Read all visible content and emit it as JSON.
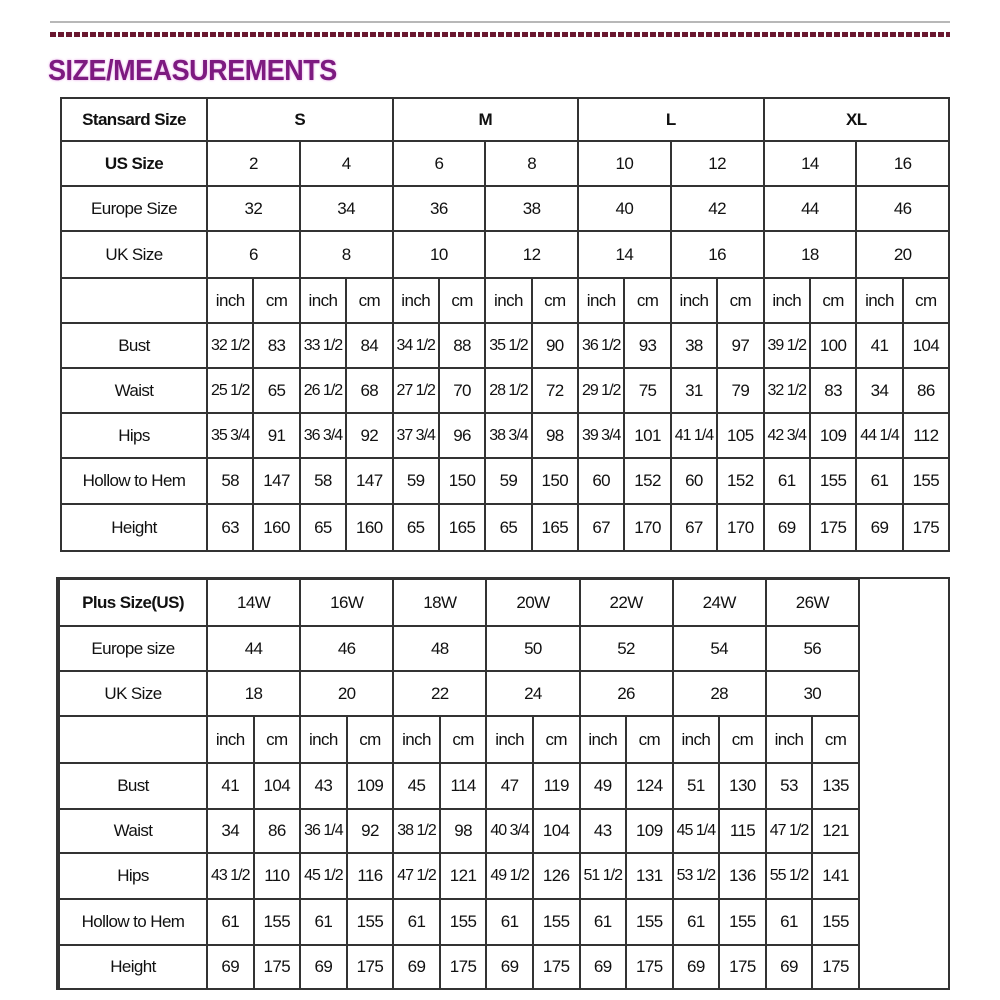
{
  "title": "SIZE/MEASUREMENTS",
  "colors": {
    "title": "#7d1a80",
    "dotted_rule": "#6a1830"
  },
  "standard": {
    "header": {
      "label": "Stansard Size",
      "groups": [
        "S",
        "M",
        "L",
        "XL"
      ]
    },
    "size_rows": [
      {
        "label": "US Size",
        "values": [
          "2",
          "4",
          "6",
          "8",
          "10",
          "12",
          "14",
          "16"
        ]
      },
      {
        "label": "Europe Size",
        "values": [
          "32",
          "34",
          "36",
          "38",
          "40",
          "42",
          "44",
          "46"
        ]
      },
      {
        "label": "UK Size",
        "values": [
          "6",
          "8",
          "10",
          "12",
          "14",
          "16",
          "18",
          "20"
        ]
      }
    ],
    "units": [
      "inch",
      "cm",
      "inch",
      "cm",
      "inch",
      "cm",
      "inch",
      "cm",
      "inch",
      "cm",
      "inch",
      "cm",
      "inch",
      "cm",
      "inch",
      "cm"
    ],
    "measure_rows": [
      {
        "label": "Bust",
        "values": [
          "32 1/2",
          "83",
          "33 1/2",
          "84",
          "34 1/2",
          "88",
          "35 1/2",
          "90",
          "36 1/2",
          "93",
          "38",
          "97",
          "39 1/2",
          "100",
          "41",
          "104"
        ]
      },
      {
        "label": "Waist",
        "values": [
          "25 1/2",
          "65",
          "26 1/2",
          "68",
          "27 1/2",
          "70",
          "28 1/2",
          "72",
          "29 1/2",
          "75",
          "31",
          "79",
          "32 1/2",
          "83",
          "34",
          "86"
        ]
      },
      {
        "label": "Hips",
        "values": [
          "35 3/4",
          "91",
          "36 3/4",
          "92",
          "37 3/4",
          "96",
          "38 3/4",
          "98",
          "39 3/4",
          "101",
          "41 1/4",
          "105",
          "42 3/4",
          "109",
          "44 1/4",
          "112"
        ]
      },
      {
        "label": "Hollow to Hem",
        "values": [
          "58",
          "147",
          "58",
          "147",
          "59",
          "150",
          "59",
          "150",
          "60",
          "152",
          "60",
          "152",
          "61",
          "155",
          "61",
          "155"
        ]
      },
      {
        "label": "Height",
        "values": [
          "63",
          "160",
          "65",
          "160",
          "65",
          "165",
          "65",
          "165",
          "67",
          "170",
          "67",
          "170",
          "69",
          "175",
          "69",
          "175"
        ]
      }
    ]
  },
  "plus": {
    "header": {
      "label": "Plus Size(US)",
      "values": [
        "14W",
        "16W",
        "18W",
        "20W",
        "22W",
        "24W",
        "26W"
      ]
    },
    "size_rows": [
      {
        "label": "Europe size",
        "values": [
          "44",
          "46",
          "48",
          "50",
          "52",
          "54",
          "56"
        ]
      },
      {
        "label": "UK Size",
        "values": [
          "18",
          "20",
          "22",
          "24",
          "26",
          "28",
          "30"
        ]
      }
    ],
    "units": [
      "inch",
      "cm",
      "inch",
      "cm",
      "inch",
      "cm",
      "inch",
      "cm",
      "inch",
      "cm",
      "inch",
      "cm",
      "inch",
      "cm"
    ],
    "measure_rows": [
      {
        "label": "Bust",
        "values": [
          "41",
          "104",
          "43",
          "109",
          "45",
          "114",
          "47",
          "119",
          "49",
          "124",
          "51",
          "130",
          "53",
          "135"
        ]
      },
      {
        "label": "Waist",
        "values": [
          "34",
          "86",
          "36 1/4",
          "92",
          "38 1/2",
          "98",
          "40 3/4",
          "104",
          "43",
          "109",
          "45 1/4",
          "115",
          "47 1/2",
          "121"
        ]
      },
      {
        "label": "Hips",
        "values": [
          "43 1/2",
          "110",
          "45 1/2",
          "116",
          "47 1/2",
          "121",
          "49 1/2",
          "126",
          "51 1/2",
          "131",
          "53 1/2",
          "136",
          "55 1/2",
          "141"
        ]
      },
      {
        "label": "Hollow to Hem",
        "values": [
          "61",
          "155",
          "61",
          "155",
          "61",
          "155",
          "61",
          "155",
          "61",
          "155",
          "61",
          "155",
          "61",
          "155"
        ]
      },
      {
        "label": "Height",
        "values": [
          "69",
          "175",
          "69",
          "175",
          "69",
          "175",
          "69",
          "175",
          "69",
          "175",
          "69",
          "175",
          "69",
          "175"
        ]
      }
    ]
  }
}
